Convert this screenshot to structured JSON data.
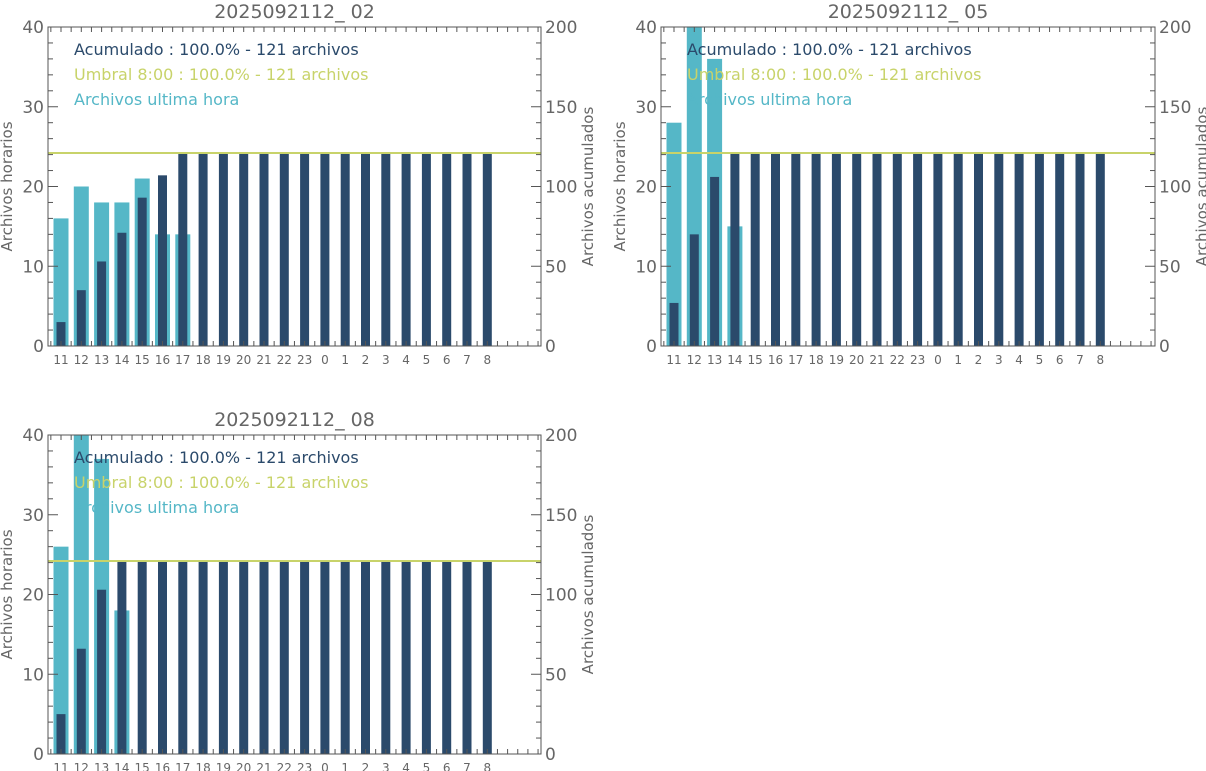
{
  "colors": {
    "hourly": "#55b7c7",
    "accumulated": "#2b4a6b",
    "threshold": "#c8d36a",
    "axis": "#555555",
    "text": "#666666"
  },
  "chart_data": [
    {
      "type": "bar",
      "title": "2025092112_ 02",
      "ylabel": "Archivos horarios",
      "y2label": "Archivos acumulados",
      "ylim": [
        0,
        40
      ],
      "y2lim": [
        0,
        200
      ],
      "yticks": [
        "0",
        "10",
        "20",
        "30",
        "40"
      ],
      "y2ticks": [
        "0",
        "50",
        "100",
        "150",
        "200"
      ],
      "categories": [
        "11",
        "12",
        "13",
        "14",
        "15",
        "16",
        "17",
        "18",
        "19",
        "20",
        "21",
        "22",
        "23",
        "0",
        "1",
        "2",
        "3",
        "4",
        "5",
        "6",
        "7",
        "8"
      ],
      "legend": [
        {
          "text": "Acumulado : 100.0% - 121 archivos",
          "color": "accumulated"
        },
        {
          "text": "Umbral 8:00 : 100.0% - 121 archivos",
          "color": "threshold"
        },
        {
          "text": "Archivos ultima hora",
          "color": "hourly"
        }
      ],
      "threshold": 121,
      "series": [
        {
          "name": "Archivos ultima hora",
          "axis": "left",
          "values": [
            16,
            20,
            18,
            18,
            21,
            14,
            14,
            null,
            null,
            null,
            null,
            null,
            null,
            null,
            null,
            null,
            null,
            null,
            null,
            null,
            null,
            null
          ]
        },
        {
          "name": "Acumulado",
          "axis": "right",
          "values": [
            15,
            35,
            53,
            71,
            93,
            107,
            121,
            121,
            121,
            121,
            121,
            121,
            121,
            121,
            121,
            121,
            121,
            121,
            121,
            121,
            121,
            121
          ]
        }
      ]
    },
    {
      "type": "bar",
      "title": "2025092112_ 05",
      "ylabel": "Archivos horarios",
      "y2label": "Archivos acumulados",
      "ylim": [
        0,
        40
      ],
      "y2lim": [
        0,
        200
      ],
      "yticks": [
        "0",
        "10",
        "20",
        "30",
        "40"
      ],
      "y2ticks": [
        "0",
        "50",
        "100",
        "150",
        "200"
      ],
      "categories": [
        "11",
        "12",
        "13",
        "14",
        "15",
        "16",
        "17",
        "18",
        "19",
        "20",
        "21",
        "22",
        "23",
        "0",
        "1",
        "2",
        "3",
        "4",
        "5",
        "6",
        "7",
        "8"
      ],
      "legend": [
        {
          "text": "Acumulado : 100.0% - 121 archivos",
          "color": "accumulated"
        },
        {
          "text": "Umbral 8:00 : 100.0% - 121 archivos",
          "color": "threshold"
        },
        {
          "text": "Archivos ultima hora",
          "color": "hourly"
        }
      ],
      "threshold": 121,
      "series": [
        {
          "name": "Archivos ultima hora",
          "axis": "left",
          "values": [
            28,
            43,
            36,
            15,
            null,
            null,
            null,
            null,
            null,
            null,
            null,
            null,
            null,
            null,
            null,
            null,
            null,
            null,
            null,
            null,
            null,
            null
          ]
        },
        {
          "name": "Acumulado",
          "axis": "right",
          "values": [
            27,
            70,
            106,
            121,
            121,
            121,
            121,
            121,
            121,
            121,
            121,
            121,
            121,
            121,
            121,
            121,
            121,
            121,
            121,
            121,
            121,
            121
          ]
        }
      ]
    },
    {
      "type": "bar",
      "title": "2025092112_ 08",
      "ylabel": "Archivos horarios",
      "y2label": "Archivos acumulados",
      "ylim": [
        0,
        40
      ],
      "y2lim": [
        0,
        200
      ],
      "yticks": [
        "0",
        "10",
        "20",
        "30",
        "40"
      ],
      "y2ticks": [
        "0",
        "50",
        "100",
        "150",
        "200"
      ],
      "categories": [
        "11",
        "12",
        "13",
        "14",
        "15",
        "16",
        "17",
        "18",
        "19",
        "20",
        "21",
        "22",
        "23",
        "0",
        "1",
        "2",
        "3",
        "4",
        "5",
        "6",
        "7",
        "8"
      ],
      "legend": [
        {
          "text": "Acumulado : 100.0% - 121 archivos",
          "color": "accumulated"
        },
        {
          "text": "Umbral 8:00 : 100.0% - 121 archivos",
          "color": "threshold"
        },
        {
          "text": "Archivos ultima hora",
          "color": "hourly"
        }
      ],
      "threshold": 121,
      "series": [
        {
          "name": "Archivos ultima hora",
          "axis": "left",
          "values": [
            26,
            40,
            37,
            18,
            null,
            null,
            null,
            null,
            null,
            null,
            null,
            null,
            null,
            null,
            null,
            null,
            null,
            null,
            null,
            null,
            null,
            null
          ]
        },
        {
          "name": "Acumulado",
          "axis": "right",
          "values": [
            25,
            66,
            103,
            121,
            121,
            121,
            121,
            121,
            121,
            121,
            121,
            121,
            121,
            121,
            121,
            121,
            121,
            121,
            121,
            121,
            121,
            121
          ]
        }
      ]
    }
  ]
}
